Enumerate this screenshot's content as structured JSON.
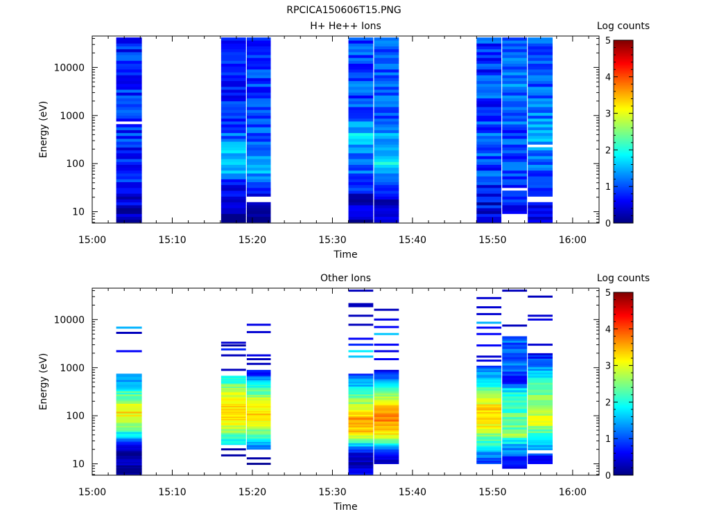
{
  "figure_title": "RPCICA150606T15.PNG",
  "chart_data": [
    {
      "type": "heatmap",
      "title": "H+ He++ Ions",
      "xlabel": "Time",
      "ylabel": "Energy (eV)",
      "x_ticks": [
        "15:00",
        "15:10",
        "15:20",
        "15:30",
        "15:40",
        "15:50",
        "16:00"
      ],
      "x_range_minutes": [
        0,
        63.3
      ],
      "y_scale": "log",
      "y_range": [
        5.8,
        45000
      ],
      "y_ticks": [
        "10",
        "100",
        "1000",
        "10000"
      ],
      "colorbar": {
        "label": "Log counts",
        "range": [
          0,
          5
        ],
        "ticks": [
          "0",
          "1",
          "2",
          "3",
          "4",
          "5"
        ],
        "colormap": "jet"
      },
      "columns": [
        {
          "start_min": 3.0,
          "end_min": 6.2,
          "e_min": 6,
          "e_max": 42000,
          "profile": [
            [
              6,
              0.3
            ],
            [
              15,
              0.4
            ],
            [
              40,
              0.7
            ],
            [
              200,
              0.8
            ],
            [
              1500,
              0.9
            ],
            [
              8000,
              0.8
            ],
            [
              42000,
              0.8
            ]
          ],
          "noise": 0.4,
          "gaps": [
            [
              480,
              520
            ],
            [
              560,
              600
            ],
            [
              680,
              720
            ],
            [
              2500,
              2700
            ]
          ]
        },
        {
          "start_min": 16.1,
          "end_min": 19.2,
          "e_min": 6,
          "e_max": 42000,
          "profile": [
            [
              6,
              0.1
            ],
            [
              15,
              0.3
            ],
            [
              40,
              0.8
            ],
            [
              90,
              1.7
            ],
            [
              130,
              1.7
            ],
            [
              300,
              1.2
            ],
            [
              1000,
              0.8
            ],
            [
              5000,
              0.8
            ],
            [
              42000,
              0.8
            ]
          ],
          "noise": 0.35,
          "gaps": [
            [
              2600,
              2800
            ]
          ]
        },
        {
          "start_min": 19.3,
          "end_min": 22.3,
          "e_min": 6,
          "e_max": 42000,
          "profile": [
            [
              6,
              0.1
            ],
            [
              15,
              0.3
            ],
            [
              30,
              0.7
            ],
            [
              90,
              1.6
            ],
            [
              130,
              1.5
            ],
            [
              300,
              1.1
            ],
            [
              1000,
              0.9
            ],
            [
              42000,
              0.9
            ]
          ],
          "noise": 0.35,
          "gaps": [
            [
              16,
              21
            ]
          ]
        },
        {
          "start_min": 32.0,
          "end_min": 35.1,
          "e_min": 6,
          "e_max": 42000,
          "profile": [
            [
              6,
              0.1
            ],
            [
              15,
              0.3
            ],
            [
              40,
              0.9
            ],
            [
              150,
              1.3
            ],
            [
              400,
              1.6
            ],
            [
              1500,
              1.0
            ],
            [
              42000,
              1.0
            ]
          ],
          "noise": 0.4,
          "gaps": []
        },
        {
          "start_min": 35.2,
          "end_min": 38.3,
          "e_min": 6,
          "e_max": 42000,
          "profile": [
            [
              6,
              0.5
            ],
            [
              15,
              0.4
            ],
            [
              40,
              1.0
            ],
            [
              100,
              2.0
            ],
            [
              200,
              1.6
            ],
            [
              1000,
              1.0
            ],
            [
              42000,
              1.0
            ]
          ],
          "noise": 0.35,
          "gaps": []
        },
        {
          "start_min": 48.0,
          "end_min": 51.1,
          "e_min": 6,
          "e_max": 42000,
          "profile": [
            [
              6,
              0.5
            ],
            [
              20,
              0.6
            ],
            [
              60,
              0.9
            ],
            [
              300,
              1.0
            ],
            [
              2000,
              0.9
            ],
            [
              42000,
              0.9
            ]
          ],
          "noise": 0.45,
          "gaps": []
        },
        {
          "start_min": 51.2,
          "end_min": 54.3,
          "e_min": 6,
          "e_max": 42000,
          "profile": [
            [
              6,
              0.6
            ],
            [
              20,
              0.7
            ],
            [
              80,
              1.0
            ],
            [
              500,
              1.0
            ],
            [
              2000,
              1.2
            ],
            [
              42000,
              1.0
            ]
          ],
          "noise": 0.4,
          "gaps": [
            [
              6,
              9
            ],
            [
              27,
              32
            ]
          ]
        },
        {
          "start_min": 54.4,
          "end_min": 57.5,
          "e_min": 6,
          "e_max": 42000,
          "profile": [
            [
              6,
              0.6
            ],
            [
              20,
              0.7
            ],
            [
              100,
              1.2
            ],
            [
              400,
              1.4
            ],
            [
              2000,
              1.1
            ],
            [
              42000,
              1.0
            ]
          ],
          "noise": 0.35,
          "gaps": [
            [
              15,
              21
            ],
            [
              210,
              240
            ]
          ]
        }
      ]
    },
    {
      "type": "heatmap",
      "title": "Other Ions",
      "xlabel": "Time",
      "ylabel": "Energy (eV)",
      "x_ticks": [
        "15:00",
        "15:10",
        "15:20",
        "15:30",
        "15:40",
        "15:50",
        "16:00"
      ],
      "x_range_minutes": [
        0,
        63.3
      ],
      "y_scale": "log",
      "y_range": [
        5.8,
        45000
      ],
      "y_ticks": [
        "10",
        "100",
        "1000",
        "10000"
      ],
      "colorbar": {
        "label": "Log counts",
        "range": [
          0,
          5
        ],
        "ticks": [
          "0",
          "1",
          "2",
          "3",
          "4",
          "5"
        ],
        "colormap": "jet"
      },
      "columns": [
        {
          "start_min": 3.0,
          "end_min": 6.2,
          "e_min": 6,
          "e_max": 750,
          "profile": [
            [
              6,
              0.1
            ],
            [
              25,
              0.3
            ],
            [
              32,
              1.2
            ],
            [
              60,
              2.6
            ],
            [
              120,
              3.2
            ],
            [
              200,
              2.7
            ],
            [
              400,
              1.8
            ],
            [
              750,
              1.2
            ]
          ],
          "noise": 0.3,
          "gaps": [],
          "lines": [
            [
              2200,
              0.6
            ],
            [
              5300,
              0.3
            ],
            [
              6800,
              1.5
            ]
          ]
        },
        {
          "start_min": 16.1,
          "end_min": 19.2,
          "e_min": 25,
          "e_max": 680,
          "profile": [
            [
              25,
              1.6
            ],
            [
              50,
              2.6
            ],
            [
              100,
              3.4
            ],
            [
              200,
              3.2
            ],
            [
              400,
              2.5
            ],
            [
              680,
              1.7
            ]
          ],
          "noise": 0.3,
          "gaps": [],
          "lines": [
            [
              15,
              0.2
            ],
            [
              20,
              0.2
            ],
            [
              900,
              0.3
            ],
            [
              1800,
              0.3
            ],
            [
              2400,
              0.8
            ],
            [
              2900,
              0.2
            ],
            [
              3300,
              0.4
            ]
          ]
        },
        {
          "start_min": 19.3,
          "end_min": 22.3,
          "e_min": 20,
          "e_max": 900,
          "profile": [
            [
              20,
              1.0
            ],
            [
              40,
              2.3
            ],
            [
              100,
              3.3
            ],
            [
              200,
              3.1
            ],
            [
              500,
              1.6
            ],
            [
              900,
              0.5
            ]
          ],
          "noise": 0.3,
          "gaps": [],
          "lines": [
            [
              10,
              0.1
            ],
            [
              13,
              0.2
            ],
            [
              1200,
              0.3
            ],
            [
              1500,
              0.3
            ],
            [
              1800,
              0.5
            ],
            [
              5500,
              0.4
            ],
            [
              7800,
              0.5
            ]
          ]
        },
        {
          "start_min": 32.0,
          "end_min": 35.1,
          "e_min": 6,
          "e_max": 750,
          "profile": [
            [
              6,
              0.6
            ],
            [
              10,
              0.2
            ],
            [
              15,
              0.3
            ],
            [
              22,
              1.3
            ],
            [
              40,
              3.2
            ],
            [
              80,
              3.7
            ],
            [
              150,
              3.0
            ],
            [
              300,
              2.1
            ],
            [
              750,
              1.0
            ]
          ],
          "noise": 0.3,
          "gaps": [],
          "lines": [
            [
              1700,
              1.6
            ],
            [
              2200,
              1.8
            ],
            [
              3000,
              0.8
            ],
            [
              4000,
              0.6
            ],
            [
              7800,
              0.3
            ],
            [
              12000,
              0.3
            ],
            [
              19000,
              0.3
            ],
            [
              21000,
              0.3
            ],
            [
              40000,
              0.3
            ]
          ]
        },
        {
          "start_min": 35.2,
          "end_min": 38.3,
          "e_min": 10,
          "e_max": 900,
          "profile": [
            [
              10,
              0.2
            ],
            [
              20,
              1.2
            ],
            [
              40,
              3.2
            ],
            [
              80,
              3.7
            ],
            [
              150,
              3.4
            ],
            [
              300,
              2.4
            ],
            [
              900,
              0.6
            ]
          ],
          "noise": 0.25,
          "gaps": [],
          "lines": [
            [
              1500,
              0.6
            ],
            [
              2200,
              0.5
            ],
            [
              3000,
              0.6
            ],
            [
              5000,
              1.6
            ],
            [
              7000,
              0.6
            ],
            [
              10000,
              0.5
            ],
            [
              16000,
              0.3
            ]
          ]
        },
        {
          "start_min": 48.0,
          "end_min": 51.1,
          "e_min": 10,
          "e_max": 1100,
          "profile": [
            [
              10,
              0.8
            ],
            [
              25,
              2.0
            ],
            [
              60,
              3.1
            ],
            [
              150,
              3.3
            ],
            [
              400,
              2.1
            ],
            [
              1100,
              1.0
            ]
          ],
          "noise": 0.3,
          "gaps": [],
          "lines": [
            [
              1400,
              0.5
            ],
            [
              1700,
              0.4
            ],
            [
              2900,
              0.6
            ],
            [
              5000,
              0.6
            ],
            [
              6800,
              0.6
            ],
            [
              8600,
              1.5
            ],
            [
              13000,
              0.4
            ],
            [
              18000,
              0.4
            ],
            [
              28000,
              0.4
            ]
          ]
        },
        {
          "start_min": 51.2,
          "end_min": 54.3,
          "e_min": 8,
          "e_max": 4500,
          "profile": [
            [
              8,
              0.2
            ],
            [
              20,
              1.3
            ],
            [
              40,
              2.5
            ],
            [
              100,
              2.3
            ],
            [
              300,
              1.9
            ],
            [
              600,
              0.6
            ],
            [
              1000,
              1.2
            ],
            [
              2000,
              1.0
            ],
            [
              4500,
              1.1
            ]
          ],
          "noise": 0.35,
          "gaps": [],
          "lines": [
            [
              7500,
              0.3
            ],
            [
              40000,
              0.3
            ]
          ]
        },
        {
          "start_min": 54.4,
          "end_min": 57.5,
          "e_min": 10,
          "e_max": 2000,
          "profile": [
            [
              10,
              0.3
            ],
            [
              20,
              1.3
            ],
            [
              40,
              2.1
            ],
            [
              80,
              3.1
            ],
            [
              150,
              2.6
            ],
            [
              400,
              2.3
            ],
            [
              1000,
              1.3
            ],
            [
              2000,
              0.6
            ]
          ],
          "noise": 0.3,
          "gaps": [
            [
              16,
              19
            ]
          ],
          "lines": [
            [
              3000,
              0.4
            ],
            [
              10000,
              0.5
            ],
            [
              12000,
              0.4
            ],
            [
              30000,
              0.3
            ]
          ]
        }
      ]
    }
  ]
}
